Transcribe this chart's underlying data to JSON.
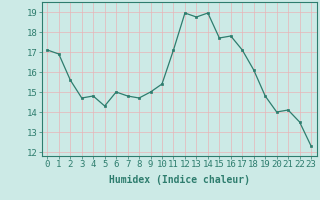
{
  "x": [
    0,
    1,
    2,
    3,
    4,
    5,
    6,
    7,
    8,
    9,
    10,
    11,
    12,
    13,
    14,
    15,
    16,
    17,
    18,
    19,
    20,
    21,
    22,
    23
  ],
  "y": [
    17.1,
    16.9,
    15.6,
    14.7,
    14.8,
    14.3,
    15.0,
    14.8,
    14.7,
    15.0,
    15.4,
    17.1,
    18.95,
    18.75,
    18.95,
    17.7,
    17.8,
    17.1,
    16.1,
    14.8,
    14.0,
    14.1,
    13.5,
    12.3
  ],
  "line_color": "#2e7d6e",
  "marker": "s",
  "marker_size": 2,
  "bg_color": "#cceae6",
  "grid_color": "#e8b4b8",
  "title": "",
  "xlabel": "Humidex (Indice chaleur)",
  "ylabel": "",
  "xlim": [
    -0.5,
    23.5
  ],
  "ylim": [
    11.8,
    19.5
  ],
  "yticks": [
    12,
    13,
    14,
    15,
    16,
    17,
    18,
    19
  ],
  "xtick_labels": [
    "0",
    "1",
    "2",
    "3",
    "4",
    "5",
    "6",
    "7",
    "8",
    "9",
    "10",
    "11",
    "12",
    "13",
    "14",
    "15",
    "16",
    "17",
    "18",
    "19",
    "20",
    "21",
    "22",
    "23"
  ],
  "xlabel_fontsize": 7,
  "tick_fontsize": 6.5,
  "tick_color": "#2e7d6e",
  "axis_color": "#2e7d6e"
}
